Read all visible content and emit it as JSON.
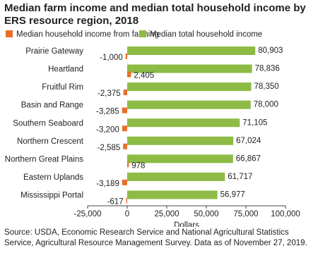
{
  "chart_data": {
    "type": "hbar",
    "title": "Median farm income and median total household income by ERS resource region, 2018",
    "categories": [
      "Prairie Gateway",
      "Heartland",
      "Fruitful Rim",
      "Basin and Range",
      "Southern Seaboard",
      "Northern Crescent",
      "Northern Great Plains",
      "Eastern Uplands",
      "Mississippi Portal"
    ],
    "series": [
      {
        "name": "Median household income from farming",
        "color": "#e8702a",
        "values": [
          -1000,
          2405,
          -2375,
          -3285,
          -3200,
          -2585,
          978,
          -3189,
          -617
        ],
        "value_labels": [
          "-1,000",
          "2,405",
          "-2,375",
          "-3,285",
          "-3,200",
          "-2,585",
          "978",
          "-3,189",
          "-617"
        ]
      },
      {
        "name": "Median total household income",
        "color": "#8dbb45",
        "values": [
          80903,
          78836,
          78350,
          78000,
          71105,
          67024,
          66867,
          61717,
          56977
        ],
        "value_labels": [
          "80,903",
          "78,836",
          "78,350",
          "78,000",
          "71,105",
          "67,024",
          "66,867",
          "61,717",
          "56,977"
        ]
      }
    ],
    "xlim": [
      -25000,
      100000
    ],
    "xticks": [
      {
        "value": -25000,
        "label": "-25,000"
      },
      0,
      {
        "value": 25000,
        "label": "25,000"
      },
      {
        "value": 50000,
        "label": "50,000"
      },
      {
        "value": 75000,
        "label": "75,000"
      },
      {
        "value": 100000,
        "label": "100,000"
      }
    ],
    "xlabel": "Dollars",
    "grid": false,
    "source": "Source: USDA, Economic Research Service and National Agricultural Statistics Service, Agricultural Resource Management Survey. Data as of November 27, 2019."
  }
}
